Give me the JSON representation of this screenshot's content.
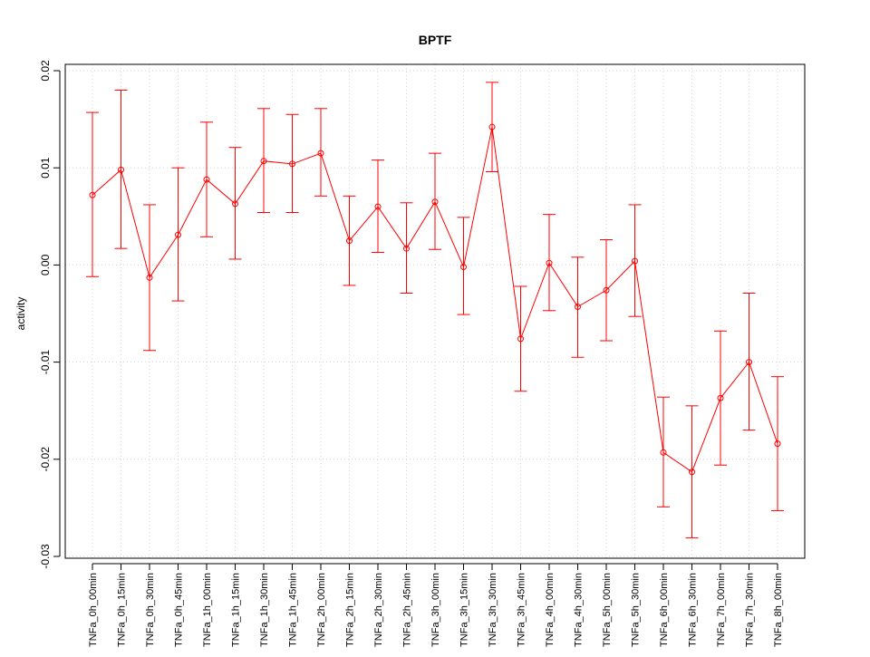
{
  "chart_data": {
    "type": "line",
    "title": "BPTF",
    "xlabel": "",
    "ylabel": "activity",
    "ylim": [
      -0.03,
      0.02
    ],
    "yticks": [
      0.02,
      0.01,
      0.0,
      -0.01,
      -0.02,
      -0.03
    ],
    "ytick_labels": [
      "0.02",
      "0.01",
      "0.00",
      "-0.01",
      "-0.02",
      "-0.03"
    ],
    "grid": true,
    "color": "#ff0000",
    "grid_color": "#d3d3d3",
    "categories": [
      "TNFa_0h_00min",
      "TNFa_0h_15min",
      "TNFa_0h_30min",
      "TNFa_0h_45min",
      "TNFa_1h_00min",
      "TNFa_1h_15min",
      "TNFa_1h_30min",
      "TNFa_1h_45min",
      "TNFa_2h_00min",
      "TNFa_2h_15min",
      "TNFa_2h_30min",
      "TNFa_2h_45min",
      "TNFa_3h_00min",
      "TNFa_3h_15min",
      "TNFa_3h_30min",
      "TNFa_3h_45min",
      "TNFa_4h_00min",
      "TNFa_4h_30min",
      "TNFa_5h_00min",
      "TNFa_5h_30min",
      "TNFa_6h_00min",
      "TNFa_6h_30min",
      "TNFa_7h_00min",
      "TNFa_7h_30min",
      "TNFa_8h_00min"
    ],
    "values": [
      0.0072,
      0.0098,
      -0.0013,
      0.0031,
      0.0088,
      0.0063,
      0.0107,
      0.0104,
      0.0115,
      0.0025,
      0.006,
      0.0017,
      0.0065,
      -0.0002,
      0.0142,
      -0.0076,
      0.0002,
      -0.0043,
      -0.0026,
      0.0004,
      -0.0193,
      -0.0213,
      -0.0137,
      -0.01,
      -0.0184
    ],
    "upper": [
      0.0157,
      0.018,
      0.0062,
      0.01,
      0.0147,
      0.0121,
      0.0161,
      0.0155,
      0.0161,
      0.0071,
      0.0108,
      0.0064,
      0.0115,
      0.0049,
      0.0188,
      -0.0022,
      0.0052,
      0.0008,
      0.0026,
      0.0062,
      -0.0136,
      -0.0145,
      -0.0068,
      -0.0029,
      -0.0115
    ],
    "lower": [
      -0.0012,
      0.0017,
      -0.0088,
      -0.0037,
      0.0029,
      0.0006,
      0.0054,
      0.0054,
      0.0071,
      -0.0021,
      0.0013,
      -0.0029,
      0.0016,
      -0.0051,
      0.0096,
      -0.013,
      -0.0047,
      -0.0095,
      -0.0078,
      -0.0053,
      -0.0249,
      -0.0281,
      -0.0206,
      -0.017,
      -0.0253
    ]
  }
}
